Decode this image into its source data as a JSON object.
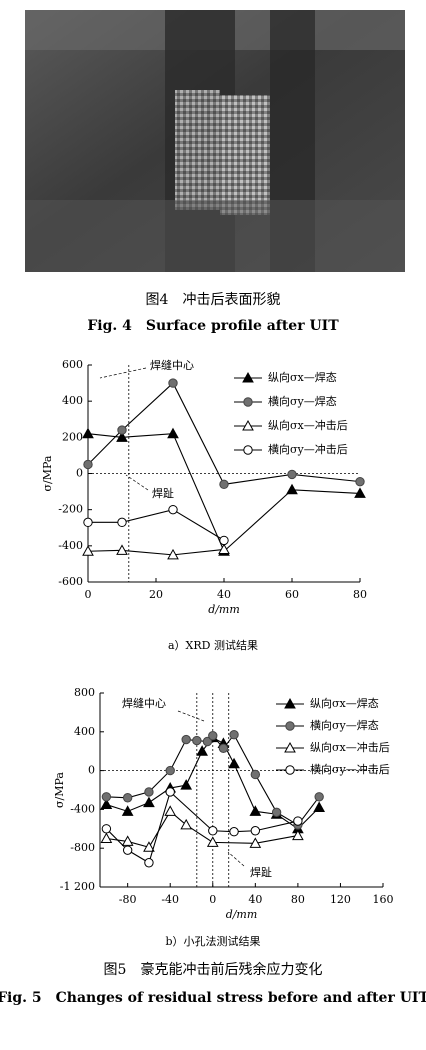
{
  "figure4": {
    "caption_cn": "图4　冲击后表面形貌",
    "caption_en": "Fig. 4　Surface profile after UIT"
  },
  "chart_data": [
    {
      "type": "line",
      "subcaption": "a）XRD 测试结果",
      "xlabel": "d/mm",
      "ylabel": "σ/MPa",
      "xlim": [
        0,
        80
      ],
      "xticks": [
        0,
        20,
        40,
        60,
        80
      ],
      "ylim": [
        -600,
        600
      ],
      "yticks": [
        -600,
        -400,
        -200,
        0,
        200,
        400,
        600
      ],
      "vlines": [
        12
      ],
      "hlines": [
        0
      ],
      "annotations": [
        "焊缝中心",
        "焊趾"
      ],
      "legend": "upper right",
      "series": [
        {
          "name": "纵向σx—焊态",
          "color": "#000000",
          "marker": "triangle",
          "filled": true,
          "x": [
            0,
            10,
            25,
            40,
            60,
            80
          ],
          "values": [
            220,
            200,
            220,
            -430,
            -90,
            -110
          ]
        },
        {
          "name": "横向σy—焊态",
          "color": "#707070",
          "marker": "circle",
          "filled": true,
          "x": [
            0,
            10,
            25,
            40,
            60,
            80
          ],
          "values": [
            50,
            240,
            500,
            -60,
            -5,
            -45
          ]
        },
        {
          "name": "纵向σx—冲击后",
          "color": "#000000",
          "marker": "triangle",
          "filled": false,
          "x": [
            0,
            10,
            25,
            40
          ],
          "values": [
            -430,
            -425,
            -450,
            -420
          ]
        },
        {
          "name": "横向σy—冲击后",
          "color": "#000000",
          "marker": "circle",
          "filled": false,
          "x": [
            0,
            10,
            25,
            40
          ],
          "values": [
            -270,
            -270,
            -200,
            -370
          ]
        }
      ]
    },
    {
      "type": "line",
      "subcaption": "b）小孔法测试结果",
      "xlabel": "d/mm",
      "ylabel": "σ/MPa",
      "xlim": [
        -106,
        160
      ],
      "xticks": [
        -80,
        -40,
        0,
        40,
        80,
        120,
        160
      ],
      "ylim": [
        -1200,
        800
      ],
      "yticks": [
        {
          "value": -1200,
          "label": "-1 200"
        },
        -800,
        -400,
        0,
        400,
        800
      ],
      "vlines": [
        -15,
        0,
        15
      ],
      "hlines": [
        0
      ],
      "annotations": [
        "焊缝中心",
        "焊趾"
      ],
      "legend": "upper right",
      "series": [
        {
          "name": "纵向σx—焊态",
          "color": "#000000",
          "marker": "triangle",
          "filled": true,
          "x": [
            -100,
            -80,
            -60,
            -40,
            -25,
            -10,
            0,
            10,
            20,
            40,
            60,
            80,
            100
          ],
          "values": [
            -350,
            -420,
            -330,
            -180,
            -150,
            200,
            340,
            280,
            70,
            -420,
            -450,
            -600,
            -380
          ]
        },
        {
          "name": "横向σy—焊态",
          "color": "#707070",
          "marker": "circle",
          "filled": true,
          "x": [
            -100,
            -80,
            -60,
            -40,
            -25,
            -15,
            -5,
            0,
            10,
            20,
            40,
            60,
            80,
            100
          ],
          "values": [
            -270,
            -280,
            -220,
            0,
            320,
            310,
            300,
            360,
            230,
            370,
            -40,
            -430,
            -560,
            -270
          ]
        },
        {
          "name": "纵向σx—冲击后",
          "color": "#000000",
          "marker": "triangle",
          "filled": false,
          "x": [
            -100,
            -80,
            -60,
            -40,
            -25,
            0,
            40,
            80
          ],
          "values": [
            -700,
            -730,
            -790,
            -420,
            -560,
            -740,
            -750,
            -670
          ]
        },
        {
          "name": "横向σy—冲击后",
          "color": "#000000",
          "marker": "circle",
          "filled": false,
          "x": [
            -100,
            -80,
            -60,
            -40,
            0,
            20,
            40,
            80
          ],
          "values": [
            -600,
            -820,
            -950,
            -220,
            -620,
            -630,
            -620,
            -520
          ]
        }
      ]
    }
  ],
  "figure5": {
    "caption_cn": "图5　豪克能冲击前后残余应力变化",
    "caption_en": "Fig. 5　Changes of residual stress before and after UIT"
  }
}
